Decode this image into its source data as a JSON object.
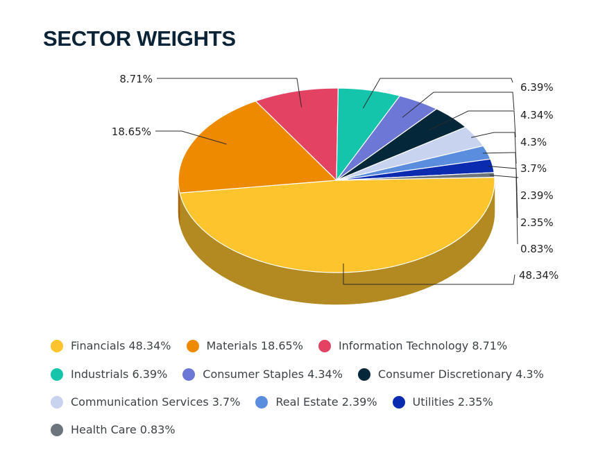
{
  "chart_data": {
    "type": "pie",
    "title": "SECTOR WEIGHTS",
    "unit": "%",
    "slices": [
      {
        "name": "Financials",
        "value": 48.34,
        "label": "48.34%",
        "legend": "Financials 48.34%",
        "color": "#fdc42d",
        "side_color": "#b38a22"
      },
      {
        "name": "Materials",
        "value": 18.65,
        "label": "18.65%",
        "legend": "Materials 18.65%",
        "color": "#ee8a00",
        "side_color": "#a96200"
      },
      {
        "name": "Information Technology",
        "value": 8.71,
        "label": "8.71%",
        "legend": "Information Technology 8.71%",
        "color": "#e34262",
        "side_color": "#a12f46"
      },
      {
        "name": "Industrials",
        "value": 6.39,
        "label": "6.39%",
        "legend": "Industrials 6.39%",
        "color": "#14c4ab",
        "side_color": "#0e8b7a"
      },
      {
        "name": "Consumer Staples",
        "value": 4.34,
        "label": "4.34%",
        "legend": "Consumer Staples 4.34%",
        "color": "#6d78d6",
        "side_color": "#4d5598"
      },
      {
        "name": "Consumer Discretionary",
        "value": 4.3,
        "label": "4.3%",
        "legend": "Consumer Discretionary 4.3%",
        "color": "#05273a",
        "side_color": "#021b29"
      },
      {
        "name": "Communication Services",
        "value": 3.7,
        "label": "3.7%",
        "legend": "Communication Services 3.7%",
        "color": "#c7d3ef",
        "side_color": "#8d96aa"
      },
      {
        "name": "Real Estate",
        "value": 2.39,
        "label": "2.39%",
        "legend": "Real Estate 2.39%",
        "color": "#5b8ddf",
        "side_color": "#41649e"
      },
      {
        "name": "Utilities",
        "value": 2.35,
        "label": "2.35%",
        "legend": "Utilities 2.35%",
        "color": "#0a2aaf",
        "side_color": "#071e7c"
      },
      {
        "name": "Health Care",
        "value": 0.83,
        "label": "0.83%",
        "legend": "Health Care 0.83%",
        "color": "#6c747c",
        "side_color": "#4d5358"
      }
    ]
  }
}
